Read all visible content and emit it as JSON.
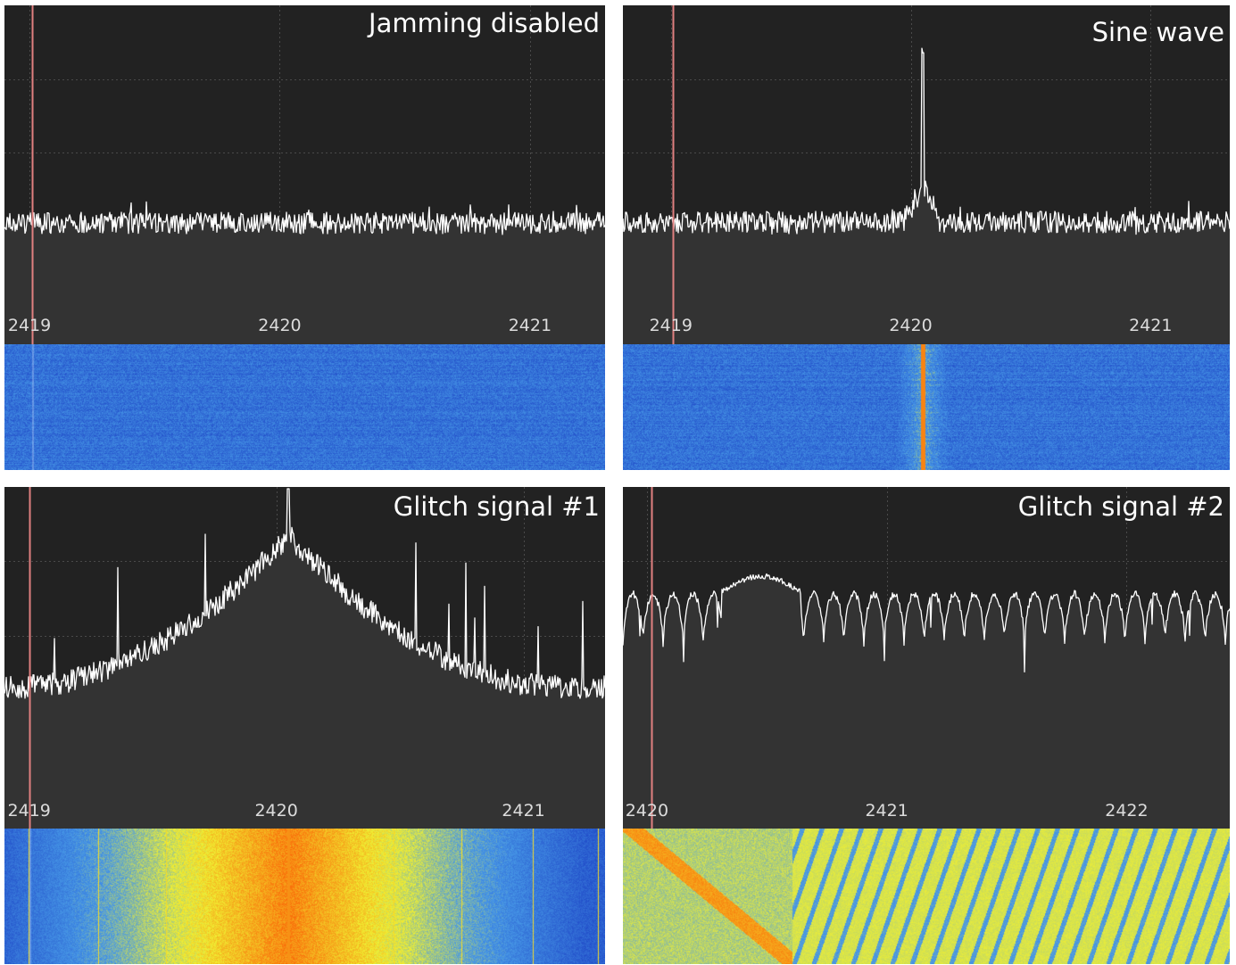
{
  "colors": {
    "top_background": "#222222",
    "bottom_background": "#333333",
    "trace": "#ffffff",
    "grid": "#4a4a4a",
    "tick_label": "#dcdcdc",
    "marker": "#e08080",
    "waterfall_base": "#1e40d2"
  },
  "panels": [
    {
      "title": "Jamming disabled",
      "ticks": [
        {
          "label": "2419",
          "value": 2419
        },
        {
          "label": "2420",
          "value": 2420
        },
        {
          "label": "2421",
          "value": 2421
        }
      ],
      "freq_range": [
        2418.9,
        2421.3
      ],
      "marker_freq": 2419.01,
      "signal": "noise"
    },
    {
      "title": "Sine wave",
      "ticks": [
        {
          "label": "2419",
          "value": 2419
        },
        {
          "label": "2420",
          "value": 2420
        },
        {
          "label": "2421",
          "value": 2421
        }
      ],
      "freq_range": [
        2418.8,
        2421.33
      ],
      "marker_freq": 2419.01,
      "signal": "sine",
      "peak_freq": 2420.05
    },
    {
      "title": "Glitch signal #1",
      "ticks": [
        {
          "label": "2419",
          "value": 2419
        },
        {
          "label": "2420",
          "value": 2420
        },
        {
          "label": "2421",
          "value": 2421
        }
      ],
      "freq_range": [
        2418.9,
        2421.33
      ],
      "marker_freq": 2419.0,
      "signal": "glitch1",
      "peak_freq": 2420.05
    },
    {
      "title": "Glitch signal #2",
      "ticks": [
        {
          "label": "2420",
          "value": 2420
        },
        {
          "label": "2421",
          "value": 2421
        },
        {
          "label": "2422",
          "value": 2422
        }
      ],
      "freq_range": [
        2419.9,
        2422.43
      ],
      "marker_freq": 2420.02,
      "signal": "glitch2"
    }
  ]
}
